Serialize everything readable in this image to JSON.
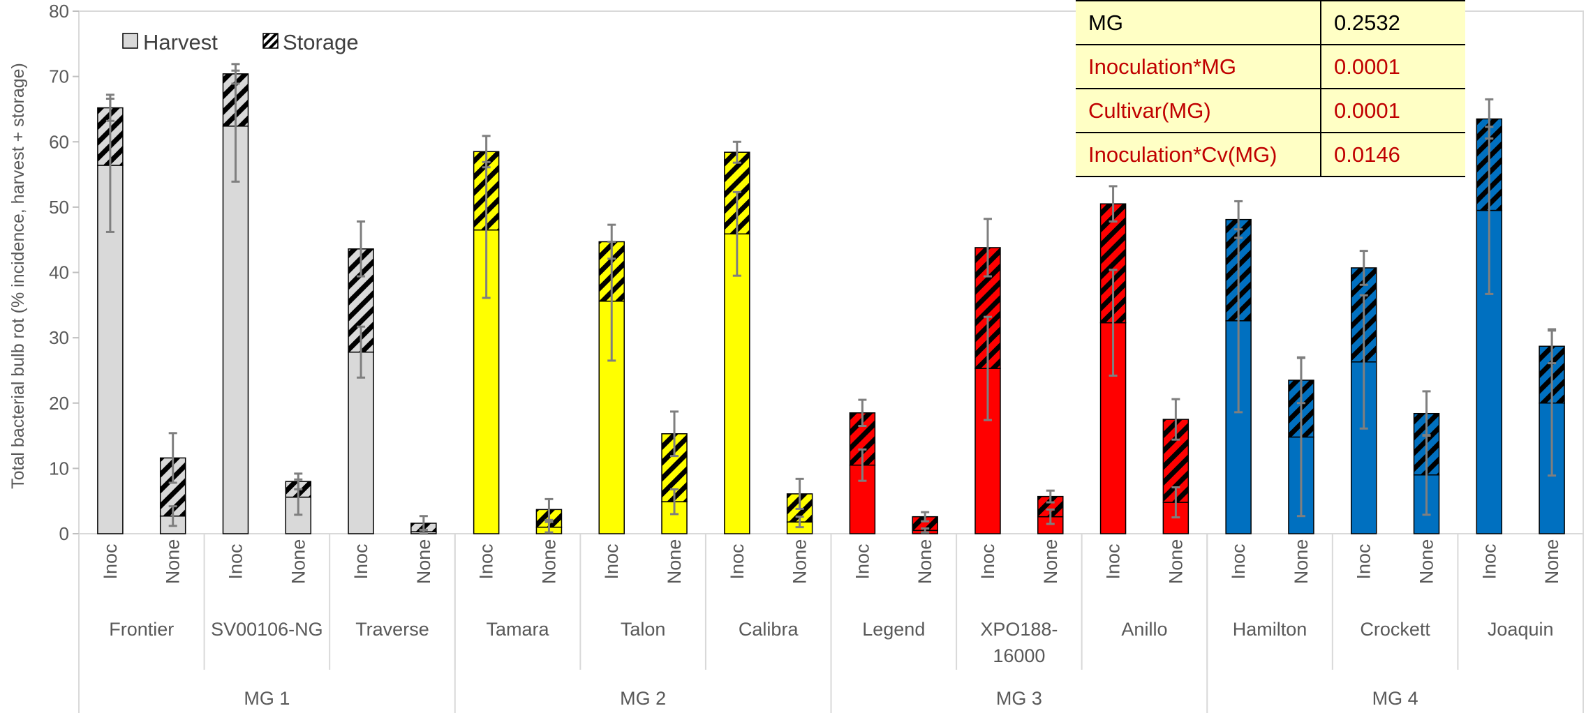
{
  "chart_data": {
    "type": "bar",
    "stacked": true,
    "ylabel": "Total bacterial bulb rot (% incidence, harvest + storage)",
    "ylim": [
      0,
      80
    ],
    "yticks": [
      0,
      10,
      20,
      30,
      40,
      50,
      60,
      70,
      80
    ],
    "grid": false,
    "legend": {
      "placement": "top-left",
      "entries": [
        {
          "label": "Harvest",
          "pattern": "solid"
        },
        {
          "label": "Storage",
          "pattern": "hatched"
        }
      ]
    },
    "groups": [
      {
        "label": "MG 1",
        "color": "#d9d9d9",
        "cultivars": [
          {
            "name": "Frontier",
            "bars": [
              {
                "treatment": "Inoc",
                "harvest": 56.4,
                "storage": 8.8,
                "err_total": 2.0,
                "err_harvest": 10.2
              },
              {
                "treatment": "None",
                "harvest": 2.7,
                "storage": 8.9,
                "err_total": 3.8,
                "err_harvest": 1.5
              }
            ]
          },
          {
            "name": "SV00106-NG",
            "bars": [
              {
                "treatment": "Inoc",
                "harvest": 62.4,
                "storage": 8.0,
                "err_total": 1.5,
                "err_harvest": 8.5
              },
              {
                "treatment": "None",
                "harvest": 5.6,
                "storage": 2.4,
                "err_total": 1.2,
                "err_harvest": 2.7
              }
            ]
          },
          {
            "name": "Traverse",
            "bars": [
              {
                "treatment": "Inoc",
                "harvest": 27.8,
                "storage": 15.8,
                "err_total": 4.2,
                "err_harvest": 3.9
              },
              {
                "treatment": "None",
                "harvest": 0.3,
                "storage": 1.3,
                "err_total": 1.1,
                "err_harvest": 0.3
              }
            ]
          }
        ]
      },
      {
        "label": "MG 2",
        "color": "#ffff00",
        "cultivars": [
          {
            "name": "Tamara",
            "bars": [
              {
                "treatment": "Inoc",
                "harvest": 46.5,
                "storage": 12.0,
                "err_total": 2.4,
                "err_harvest": 10.4
              },
              {
                "treatment": "None",
                "harvest": 1.0,
                "storage": 2.7,
                "err_total": 1.6,
                "err_harvest": 0.8
              }
            ]
          },
          {
            "name": "Talon",
            "bars": [
              {
                "treatment": "Inoc",
                "harvest": 35.6,
                "storage": 9.1,
                "err_total": 2.6,
                "err_harvest": 9.1
              },
              {
                "treatment": "None",
                "harvest": 4.9,
                "storage": 10.4,
                "err_total": 3.4,
                "err_harvest": 1.9
              }
            ]
          },
          {
            "name": "Calibra",
            "bars": [
              {
                "treatment": "Inoc",
                "harvest": 45.9,
                "storage": 12.5,
                "err_total": 1.6,
                "err_harvest": 6.4
              },
              {
                "treatment": "None",
                "harvest": 1.8,
                "storage": 4.3,
                "err_total": 2.3,
                "err_harvest": 0.8
              }
            ]
          }
        ]
      },
      {
        "label": "MG 3",
        "color": "#ff0000",
        "cultivars": [
          {
            "name": "Legend",
            "bars": [
              {
                "treatment": "Inoc",
                "harvest": 10.5,
                "storage": 8.0,
                "err_total": 2.0,
                "err_harvest": 2.4
              },
              {
                "treatment": "None",
                "harvest": 0.5,
                "storage": 2.1,
                "err_total": 0.7,
                "err_harvest": 0.3
              }
            ]
          },
          {
            "name": "XPO188-16000",
            "bars": [
              {
                "treatment": "Inoc",
                "harvest": 25.3,
                "storage": 18.5,
                "err_total": 4.4,
                "err_harvest": 7.9
              },
              {
                "treatment": "None",
                "harvest": 2.6,
                "storage": 3.1,
                "err_total": 0.9,
                "err_harvest": 1.1
              }
            ]
          },
          {
            "name": "Anillo",
            "bars": [
              {
                "treatment": "Inoc",
                "harvest": 32.3,
                "storage": 18.2,
                "err_total": 2.7,
                "err_harvest": 8.1
              },
              {
                "treatment": "None",
                "harvest": 4.8,
                "storage": 12.7,
                "err_total": 3.1,
                "err_harvest": 2.3
              }
            ]
          }
        ]
      },
      {
        "label": "MG 4",
        "color": "#0070c0",
        "cultivars": [
          {
            "name": "Hamilton",
            "bars": [
              {
                "treatment": "Inoc",
                "harvest": 32.6,
                "storage": 15.5,
                "err_total": 2.8,
                "err_harvest": 14.0
              },
              {
                "treatment": "None",
                "harvest": 14.8,
                "storage": 8.7,
                "err_total": 3.5,
                "err_harvest": 12.1
              }
            ]
          },
          {
            "name": "Crockett",
            "bars": [
              {
                "treatment": "Inoc",
                "harvest": 26.3,
                "storage": 14.4,
                "err_total": 2.6,
                "err_harvest": 10.2
              },
              {
                "treatment": "None",
                "harvest": 9.0,
                "storage": 9.4,
                "err_total": 3.4,
                "err_harvest": 6.1
              }
            ]
          },
          {
            "name": "Joaquin",
            "bars": [
              {
                "treatment": "Inoc",
                "harvest": 49.5,
                "storage": 14.0,
                "err_total": 3.0,
                "err_harvest": 12.8
              },
              {
                "treatment": "None",
                "harvest": 20.0,
                "storage": 8.7,
                "err_total": 2.6,
                "err_harvest": 11.1
              }
            ]
          }
        ]
      }
    ],
    "annotation_table": {
      "placement": "top-right",
      "rows": [
        {
          "effect": "MG",
          "p_value": "0.2532",
          "significant": false
        },
        {
          "effect": "Inoculation*MG",
          "p_value": "0.0001",
          "significant": true
        },
        {
          "effect": "Cultivar(MG)",
          "p_value": "0.0001",
          "significant": true
        },
        {
          "effect": "Inoculation*Cv(MG)",
          "p_value": "0.0146",
          "significant": true
        }
      ],
      "colors": {
        "significant": "#c00000",
        "not_significant": "#000000",
        "background": "#ffffc5"
      }
    }
  }
}
